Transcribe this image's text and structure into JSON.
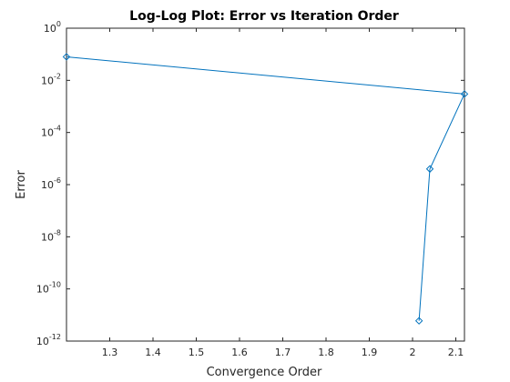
{
  "chart_data": {
    "type": "line",
    "title": "Log-Log Plot: Error vs Iteration Order",
    "xlabel": "Convergence Order",
    "ylabel": "Error",
    "xlim": [
      1.2,
      2.12
    ],
    "ylim": [
      1e-12,
      1
    ],
    "yscale": "log",
    "grid": false,
    "legend": "none",
    "series_color": "#0072BD",
    "marker": "diamond",
    "x_ticks": [
      "1.3",
      "1.4",
      "1.5",
      "1.6",
      "1.7",
      "1.8",
      "1.9",
      "2",
      "2.1"
    ],
    "y_ticks": [
      {
        "base": "10",
        "exp": "0",
        "value": 1
      },
      {
        "base": "10",
        "exp": "-2",
        "value": 0.01
      },
      {
        "base": "10",
        "exp": "-4",
        "value": 0.0001
      },
      {
        "base": "10",
        "exp": "-6",
        "value": 1e-06
      },
      {
        "base": "10",
        "exp": "-8",
        "value": 1e-08
      },
      {
        "base": "10",
        "exp": "-10",
        "value": 1e-10
      },
      {
        "base": "10",
        "exp": "-12",
        "value": 1e-12
      }
    ],
    "series": [
      {
        "x": [
          1.2,
          2.12,
          2.04,
          2.015
        ],
        "y": [
          0.08,
          0.003,
          4e-06,
          6e-12
        ]
      }
    ]
  }
}
